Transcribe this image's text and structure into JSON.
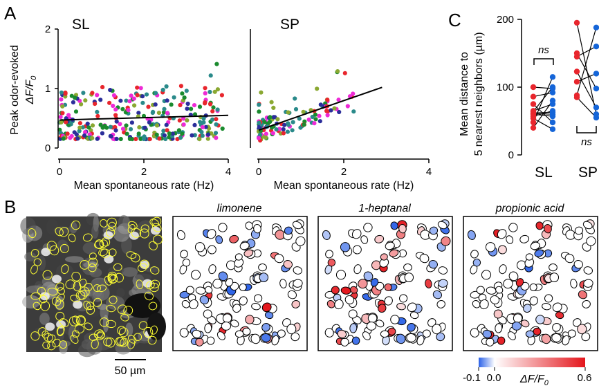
{
  "figure": {
    "panel_letters": [
      "A",
      "B",
      "C"
    ]
  },
  "colors": {
    "palette": [
      "#1a8a2e",
      "#e8262d",
      "#2a8a8a",
      "#2b2d9a",
      "#ee2ad6",
      "#8aa832"
    ],
    "fit_line": "#000000",
    "roi_outline": "#ffff33",
    "sl_dots": "#e8262d",
    "sp_dots": "#1565d8",
    "colorbar_low": "#2b62e8",
    "colorbar_mid": "#ffffff",
    "colorbar_high": "#e4161c"
  },
  "chart_data": [
    {
      "type": "scatter",
      "panel": "A",
      "title": "SL",
      "xlabel": "Mean spontaneous rate (Hz)",
      "ylabel": "Peak odor-evoked",
      "ylabel_sub": "ΔF/F0",
      "xlim": [
        0,
        4
      ],
      "ylim": [
        0,
        2
      ],
      "xticks": [
        "0",
        "2",
        "4"
      ],
      "yticks": [
        "0",
        "1",
        "2"
      ],
      "point_count": 300,
      "fit": [
        [
          0,
          0.47
        ],
        [
          4,
          0.55
        ]
      ]
    },
    {
      "type": "scatter",
      "panel": "A",
      "title": "SP",
      "xlabel": "Mean spontaneous rate (Hz)",
      "xlim": [
        0,
        4
      ],
      "ylim": [
        0,
        2
      ],
      "xticks": [
        "0",
        "2",
        "4"
      ],
      "point_count": 120,
      "fit": [
        [
          0,
          0.3
        ],
        [
          2.9,
          1.02
        ]
      ]
    },
    {
      "type": "scatter",
      "panel": "C",
      "ylabel": "Mean distance to",
      "ylabel2": "5 nearest neighbors (µm)",
      "ylim": [
        0,
        200
      ],
      "yticks": [
        "0",
        "100",
        "200"
      ],
      "categories": [
        "SL",
        "SP"
      ],
      "significance": [
        "ns",
        "ns"
      ],
      "series": [
        {
          "name": "SL",
          "pairs": [
            [
              40,
              80
            ],
            [
              48,
              115
            ],
            [
              54,
              38
            ],
            [
              57,
              65
            ],
            [
              60,
              57
            ],
            [
              61,
              60
            ],
            [
              62,
              63
            ],
            [
              64,
              100
            ],
            [
              65,
              75
            ],
            [
              75,
              48
            ],
            [
              86,
              92
            ],
            [
              100,
              98
            ]
          ]
        },
        {
          "name": "SP",
          "pairs": [
            [
              85,
              55
            ],
            [
              88,
              188
            ],
            [
              108,
              120
            ],
            [
              123,
              70
            ],
            [
              145,
              160
            ],
            [
              150,
              98
            ],
            [
              195,
              60
            ]
          ]
        }
      ]
    }
  ],
  "panelB": {
    "odors": [
      "limonene",
      "1-heptanal",
      "propionic acid"
    ],
    "scalebar": "50 µm",
    "colorbar_ticks": [
      "-0.1",
      "0.0",
      "0.6"
    ],
    "colorbar_label": "ΔF/F",
    "colorbar_label_sub": "0",
    "cell_count": 130
  }
}
